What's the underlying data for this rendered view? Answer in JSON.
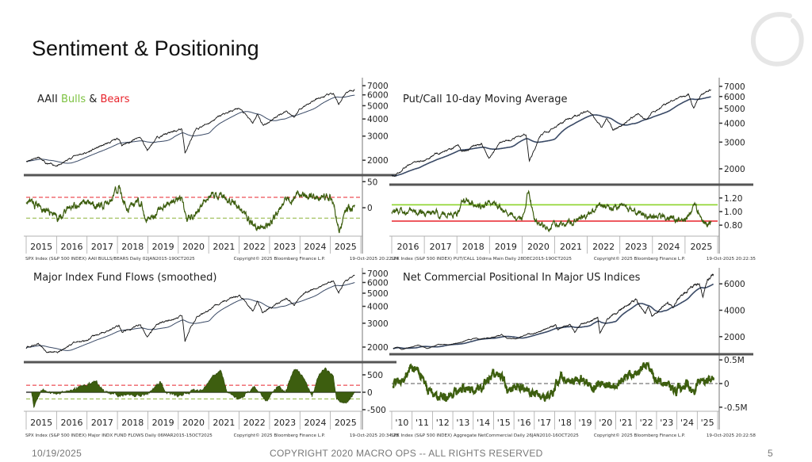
{
  "slide": {
    "title": "Sentiment & Positioning",
    "date": "10/19/2025",
    "copyright": "COPYRIGHT 2020 MACRO OPS -- ALL RIGHTS RESERVED",
    "page_number": "5"
  },
  "colors": {
    "price": "#111111",
    "moving_average": "#3a4a66",
    "indicator": "#3d5e0f",
    "bull_green": "#7dc242",
    "bear_red": "#e8242c",
    "separator": "#555555"
  },
  "chart_data": [
    {
      "id": "aaii",
      "type": "line",
      "title_parts": [
        "AAII ",
        "Bulls",
        " & ",
        "Bears"
      ],
      "x_ticks": [
        "2015",
        "2016",
        "2017",
        "2018",
        "2019",
        "2020",
        "2021",
        "2022",
        "2023",
        "2024",
        "2025"
      ],
      "xlim": [
        2015,
        2026
      ],
      "source": "SPX Index (S&P 500 INDEX) AAII BULLS/BEARS Daily 02JAN2015-19OCT2025",
      "copyright": "Copyright© 2025 Bloomberg Finance L.P.",
      "timestamp": "19-Oct-2025 20:22:24",
      "price_panel": {
        "scale": "log",
        "ylim": [
          1620,
          7800
        ],
        "y_ticks": [
          "2000",
          "3000",
          "4000",
          "5000",
          "6000",
          "7000"
        ]
      },
      "indicator_panel": {
        "style": "line",
        "ylim": [
          -53,
          58
        ],
        "y_ticks": [
          "50",
          "0"
        ],
        "ref_lines": [
          {
            "value": 20,
            "color": "#e8242c",
            "dash": true
          },
          {
            "value": -20,
            "color": "#8db33a",
            "dash": true
          }
        ],
        "anchors": [
          [
            2015,
            15
          ],
          [
            2015.5,
            0
          ],
          [
            2016,
            -20
          ],
          [
            2016.5,
            5
          ],
          [
            2017,
            10
          ],
          [
            2017.3,
            0
          ],
          [
            2017.8,
            15
          ],
          [
            2018.05,
            40
          ],
          [
            2018.3,
            0
          ],
          [
            2018.8,
            10
          ],
          [
            2018.98,
            -25
          ],
          [
            2019.5,
            5
          ],
          [
            2020.1,
            15
          ],
          [
            2020.25,
            -20
          ],
          [
            2020.6,
            -10
          ],
          [
            2021,
            25
          ],
          [
            2021.5,
            20
          ],
          [
            2022,
            0
          ],
          [
            2022.5,
            -38
          ],
          [
            2023,
            -30
          ],
          [
            2023.5,
            15
          ],
          [
            2024,
            28
          ],
          [
            2024.5,
            20
          ],
          [
            2025,
            20
          ],
          [
            2025.3,
            -42
          ],
          [
            2025.5,
            -5
          ],
          [
            2025.8,
            5
          ]
        ]
      }
    },
    {
      "id": "putcall",
      "type": "line",
      "title_parts": [
        "Put/Call 10-day Moving Average"
      ],
      "x_ticks": [
        "2016",
        "2017",
        "2018",
        "2019",
        "2020",
        "2021",
        "2022",
        "2023",
        "2024",
        "2025"
      ],
      "xlim": [
        2016,
        2026
      ],
      "source": "SPX Index (S&P 500 INDEX) PUT/CALL 10dma Main Daily 28DEC2015-19OCT2025",
      "copyright": "Copyright© 2025 Bloomberg Finance L.P.",
      "timestamp": "19-Oct-2025 20:22:35",
      "price_panel": {
        "scale": "log",
        "ylim": [
          1630,
          7800
        ],
        "y_ticks": [
          "2000",
          "3000",
          "4000",
          "5000",
          "6000",
          "7000"
        ]
      },
      "indicator_panel": {
        "style": "line",
        "ylim": [
          0.65,
          1.35
        ],
        "y_ticks": [
          "0.80",
          "1.00",
          "1.20"
        ],
        "ref_lines": [
          {
            "value": 1.1,
            "color": "#8ed42c",
            "dash": false
          },
          {
            "value": 0.86,
            "color": "#e8242c",
            "dash": false
          }
        ],
        "anchors": [
          [
            2016,
            1.02
          ],
          [
            2016.5,
            1.0
          ],
          [
            2017,
            0.97
          ],
          [
            2017.5,
            0.97
          ],
          [
            2018,
            0.95
          ],
          [
            2018.2,
            1.2
          ],
          [
            2018.8,
            1.05
          ],
          [
            2019,
            1.15
          ],
          [
            2019.5,
            0.98
          ],
          [
            2020,
            0.9
          ],
          [
            2020.2,
            1.33
          ],
          [
            2020.4,
            0.85
          ],
          [
            2020.8,
            0.75
          ],
          [
            2021,
            0.8
          ],
          [
            2021.5,
            0.85
          ],
          [
            2022,
            0.95
          ],
          [
            2022.4,
            1.1
          ],
          [
            2022.8,
            1.05
          ],
          [
            2023,
            1.12
          ],
          [
            2023.5,
            0.98
          ],
          [
            2024,
            0.92
          ],
          [
            2024.5,
            0.9
          ],
          [
            2025,
            0.88
          ],
          [
            2025.3,
            1.1
          ],
          [
            2025.5,
            0.86
          ],
          [
            2025.8,
            0.85
          ]
        ]
      }
    },
    {
      "id": "fundflows",
      "type": "area",
      "title_parts": [
        "Major Index Fund Flows (smoothed)"
      ],
      "x_ticks": [
        "2015",
        "2016",
        "2017",
        "2018",
        "2019",
        "2020",
        "2021",
        "2022",
        "2023",
        "2024",
        "2025"
      ],
      "xlim": [
        2015,
        2026
      ],
      "source": "SPX Index (S&P 500 INDEX) Major INDX FUND FLOWS Daily 06MAR2015-15OCT2025",
      "copyright": "Copyright© 2025 Bloomberg Finance L.P.",
      "timestamp": "19-Oct-2025 20:34:28",
      "price_panel": {
        "scale": "log",
        "ylim": [
          1590,
          7490
        ],
        "y_ticks": [
          "2000",
          "3000",
          "4000",
          "5000",
          "6000",
          "7000"
        ]
      },
      "indicator_panel": {
        "style": "area",
        "ylim": [
          -523,
          795
        ],
        "y_ticks": [
          "500",
          "0",
          "-500"
        ],
        "ref_lines": [
          {
            "value": 200,
            "color": "#e8242c",
            "dash": true
          },
          {
            "value": -190,
            "color": "#8db33a",
            "dash": true
          },
          {
            "value": 0,
            "color": "#444444",
            "dash": false
          }
        ],
        "anchors": [
          [
            2015.18,
            0
          ],
          [
            2015.25,
            -400
          ],
          [
            2015.5,
            50
          ],
          [
            2016,
            -50
          ],
          [
            2016.5,
            50
          ],
          [
            2017,
            250
          ],
          [
            2017.3,
            300
          ],
          [
            2017.6,
            0
          ],
          [
            2018,
            -80
          ],
          [
            2018.5,
            -100
          ],
          [
            2018.9,
            -80
          ],
          [
            2019.2,
            100
          ],
          [
            2019.4,
            300
          ],
          [
            2019.6,
            0
          ],
          [
            2020,
            -100
          ],
          [
            2020.5,
            60
          ],
          [
            2020.8,
            80
          ],
          [
            2021.1,
            400
          ],
          [
            2021.4,
            650
          ],
          [
            2021.6,
            0
          ],
          [
            2022,
            -200
          ],
          [
            2022.5,
            150
          ],
          [
            2022.9,
            -250
          ],
          [
            2023.3,
            200
          ],
          [
            2023.5,
            0
          ],
          [
            2023.8,
            650
          ],
          [
            2024.1,
            500
          ],
          [
            2024.4,
            -150
          ],
          [
            2024.6,
            450
          ],
          [
            2024.8,
            700
          ],
          [
            2025.1,
            450
          ],
          [
            2025.2,
            -200
          ],
          [
            2025.5,
            -300
          ],
          [
            2025.8,
            -50
          ]
        ]
      }
    },
    {
      "id": "netcommercial",
      "type": "line",
      "title_parts": [
        "Net Commercial Positional In Major US Indices"
      ],
      "x_ticks": [
        "'10",
        "'11",
        "'12",
        "'13",
        "'14",
        "'15",
        "'16",
        "'17",
        "'18",
        "'19",
        "'20",
        "'21",
        "'22",
        "'23",
        "'24",
        "'25"
      ],
      "xlim": [
        2010,
        2026
      ],
      "source": "SPX Index (S&P 500 INDEX) Aggregate NetCommercial Daily 26JAN2010-16OCT2025",
      "copyright": "Copyright© 2025 Bloomberg Finance L.P.",
      "timestamp": "19-Oct-2025 20:22:58",
      "price_panel": {
        "scale": "linear",
        "ylim": [
          790,
          7090
        ],
        "y_ticks": [
          "2000",
          "4000",
          "6000"
        ]
      },
      "indicator_panel": {
        "style": "line",
        "ylim": [
          -0.57,
          0.57
        ],
        "y_ticks": [
          "0.5M",
          "0",
          "-0.5M"
        ],
        "ref_lines": [
          {
            "value": 0,
            "color": "#555555",
            "dash": true
          }
        ],
        "anchors": [
          [
            2010.07,
            0
          ],
          [
            2010.5,
            0.05
          ],
          [
            2011,
            0.3
          ],
          [
            2011.3,
            0.3
          ],
          [
            2011.6,
            0
          ],
          [
            2012,
            -0.2
          ],
          [
            2012.5,
            -0.3
          ],
          [
            2013,
            -0.25
          ],
          [
            2013.5,
            -0.1
          ],
          [
            2014,
            -0.15
          ],
          [
            2014.5,
            -0.05
          ],
          [
            2015,
            0.2
          ],
          [
            2015.4,
            0.2
          ],
          [
            2015.7,
            -0.15
          ],
          [
            2016.3,
            -0.05
          ],
          [
            2016.8,
            -0.15
          ],
          [
            2017.5,
            -0.3
          ],
          [
            2017.9,
            -0.2
          ],
          [
            2018.3,
            0.15
          ],
          [
            2018.7,
            0
          ],
          [
            2019.3,
            0.1
          ],
          [
            2019.5,
            0.05
          ],
          [
            2019.9,
            -0.1
          ],
          [
            2020.4,
            0.05
          ],
          [
            2021,
            -0.1
          ],
          [
            2021.5,
            0.2
          ],
          [
            2021.8,
            0.15
          ],
          [
            2022.3,
            0.3
          ],
          [
            2022.6,
            0.4
          ],
          [
            2022.9,
            0.1
          ],
          [
            2023.3,
            0
          ],
          [
            2023.7,
            -0.1
          ],
          [
            2024,
            -0.15
          ],
          [
            2024.5,
            0
          ],
          [
            2024.8,
            -0.2
          ],
          [
            2025.1,
            0.05
          ],
          [
            2025.8,
            0.1
          ]
        ]
      }
    }
  ],
  "spx_anchors": [
    [
      2010.07,
      1100
    ],
    [
      2010.3,
      1200
    ],
    [
      2010.5,
      1030
    ],
    [
      2011.3,
      1360
    ],
    [
      2011.75,
      1100
    ],
    [
      2012.25,
      1410
    ],
    [
      2012.9,
      1400
    ],
    [
      2013.5,
      1620
    ],
    [
      2014,
      1840
    ],
    [
      2014.8,
      1900
    ],
    [
      2015.4,
      2120
    ],
    [
      2015.65,
      1870
    ],
    [
      2016.1,
      1830
    ],
    [
      2016.6,
      2170
    ],
    [
      2017,
      2270
    ],
    [
      2018.05,
      2870
    ],
    [
      2018.15,
      2580
    ],
    [
      2018.75,
      2930
    ],
    [
      2018.98,
      2350
    ],
    [
      2019.3,
      2940
    ],
    [
      2020.12,
      3380
    ],
    [
      2020.22,
      2240
    ],
    [
      2020.6,
      3350
    ],
    [
      2021,
      3750
    ],
    [
      2021.5,
      4350
    ],
    [
      2022,
      4790
    ],
    [
      2022.45,
      3700
    ],
    [
      2022.6,
      4300
    ],
    [
      2022.78,
      3580
    ],
    [
      2023,
      3850
    ],
    [
      2023.55,
      4590
    ],
    [
      2023.82,
      4120
    ],
    [
      2024,
      4770
    ],
    [
      2024.5,
      5500
    ],
    [
      2025.1,
      6140
    ],
    [
      2025.27,
      4980
    ],
    [
      2025.5,
      6200
    ],
    [
      2025.8,
      6660
    ]
  ]
}
